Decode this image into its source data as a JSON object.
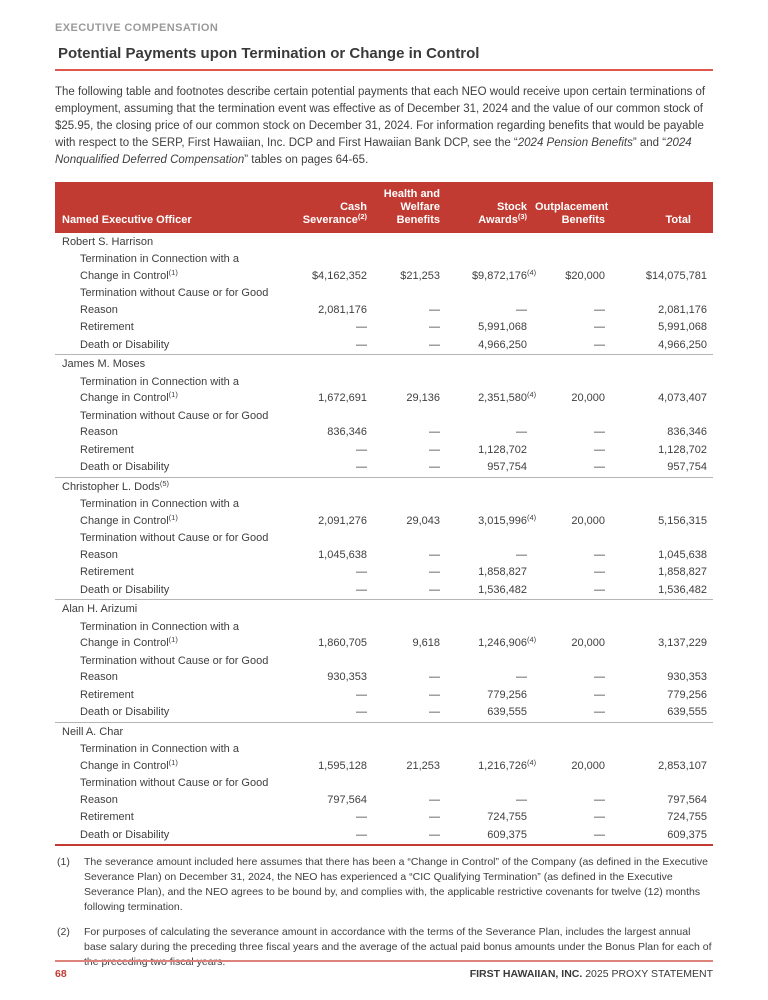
{
  "colors": {
    "header_bg": "#c23b32",
    "title_rule_red": "#e0564f",
    "footer_rule_red": "#dd837c",
    "page_number_red": "#c23b32"
  },
  "page": {
    "eyebrow": "EXECUTIVE COMPENSATION",
    "title": "Potential Payments upon Termination or Change in Control"
  },
  "intro": {
    "segments": [
      {
        "text": "The following table and footnotes describe certain potential payments that each NEO would receive upon certain terminations of employment, assuming that the termination event was effective as of December 31, 2024 and the value of our common stock of $25.95, the closing price of our common stock on December 31, 2024. For information regarding benefits that would be payable with respect to the SERP, First Hawaiian, Inc. DCP and First Hawaiian Bank DCP, see the “",
        "italic": false
      },
      {
        "text": "2024 Pension Benefits",
        "italic": true
      },
      {
        "text": "” and “",
        "italic": false
      },
      {
        "text": "2024 Nonqualified Deferred Compensation",
        "italic": true
      },
      {
        "text": "” tables on pages 64-65.",
        "italic": false
      }
    ]
  },
  "table": {
    "header": [
      {
        "lines": [
          "Named Executive Officer"
        ],
        "sup": ""
      },
      {
        "lines": [
          "Cash",
          "Severance"
        ],
        "sup": "(2)"
      },
      {
        "lines": [
          "Health and",
          "Welfare",
          "Benefits"
        ],
        "sup": ""
      },
      {
        "lines": [
          "Stock",
          "Awards"
        ],
        "sup": "(3)"
      },
      {
        "lines": [
          "Outplacement",
          "Benefits"
        ],
        "sup": ""
      },
      {
        "lines": [
          "Total"
        ],
        "sup": ""
      }
    ],
    "sections": [
      {
        "name": "Robert S. Harrison",
        "name_sup": "",
        "rows": [
          {
            "label_lines": [
              "Termination in Connection with a",
              "Change in Control"
            ],
            "label_sup": "(1)",
            "values": [
              "$4,162,352",
              "$21,253",
              "$9,872,176",
              "$20,000",
              "$14,075,781"
            ],
            "stock_sup": "(4)"
          },
          {
            "label_lines": [
              "Termination without Cause or for Good",
              "Reason"
            ],
            "label_sup": "",
            "values": [
              "2,081,176",
              "—",
              "—",
              "—",
              "2,081,176"
            ],
            "stock_sup": ""
          },
          {
            "label_lines": [
              "Retirement"
            ],
            "label_sup": "",
            "values": [
              "—",
              "—",
              "5,991,068",
              "—",
              "5,991,068"
            ],
            "stock_sup": ""
          },
          {
            "label_lines": [
              "Death or Disability"
            ],
            "label_sup": "",
            "values": [
              "—",
              "—",
              "4,966,250",
              "—",
              "4,966,250"
            ],
            "stock_sup": ""
          }
        ]
      },
      {
        "name": "James M. Moses",
        "name_sup": "",
        "rows": [
          {
            "label_lines": [
              "Termination in Connection with a",
              "Change in Control"
            ],
            "label_sup": "(1)",
            "values": [
              "1,672,691",
              "29,136",
              "2,351,580",
              "20,000",
              "4,073,407"
            ],
            "stock_sup": "(4)"
          },
          {
            "label_lines": [
              "Termination without Cause or for Good",
              "Reason"
            ],
            "label_sup": "",
            "values": [
              "836,346",
              "—",
              "—",
              "—",
              "836,346"
            ],
            "stock_sup": ""
          },
          {
            "label_lines": [
              "Retirement"
            ],
            "label_sup": "",
            "values": [
              "—",
              "—",
              "1,128,702",
              "—",
              "1,128,702"
            ],
            "stock_sup": ""
          },
          {
            "label_lines": [
              "Death or Disability"
            ],
            "label_sup": "",
            "values": [
              "—",
              "—",
              "957,754",
              "—",
              "957,754"
            ],
            "stock_sup": ""
          }
        ]
      },
      {
        "name": "Christopher L. Dods",
        "name_sup": "(5)",
        "rows": [
          {
            "label_lines": [
              "Termination in Connection with a",
              "Change in Control"
            ],
            "label_sup": "(1)",
            "values": [
              "2,091,276",
              "29,043",
              "3,015,996",
              "20,000",
              "5,156,315"
            ],
            "stock_sup": "(4)"
          },
          {
            "label_lines": [
              "Termination without Cause or for Good",
              "Reason"
            ],
            "label_sup": "",
            "values": [
              "1,045,638",
              "—",
              "—",
              "—",
              "1,045,638"
            ],
            "stock_sup": ""
          },
          {
            "label_lines": [
              "Retirement"
            ],
            "label_sup": "",
            "values": [
              "—",
              "—",
              "1,858,827",
              "—",
              "1,858,827"
            ],
            "stock_sup": ""
          },
          {
            "label_lines": [
              "Death or Disability"
            ],
            "label_sup": "",
            "values": [
              "—",
              "—",
              "1,536,482",
              "—",
              "1,536,482"
            ],
            "stock_sup": ""
          }
        ]
      },
      {
        "name": "Alan H. Arizumi",
        "name_sup": "",
        "rows": [
          {
            "label_lines": [
              "Termination in Connection with a",
              "Change in Control"
            ],
            "label_sup": "(1)",
            "values": [
              "1,860,705",
              "9,618",
              "1,246,906",
              "20,000",
              "3,137,229"
            ],
            "stock_sup": "(4)"
          },
          {
            "label_lines": [
              "Termination without Cause or for Good",
              "Reason"
            ],
            "label_sup": "",
            "values": [
              "930,353",
              "—",
              "—",
              "—",
              "930,353"
            ],
            "stock_sup": ""
          },
          {
            "label_lines": [
              "Retirement"
            ],
            "label_sup": "",
            "values": [
              "—",
              "—",
              "779,256",
              "—",
              "779,256"
            ],
            "stock_sup": ""
          },
          {
            "label_lines": [
              "Death or Disability"
            ],
            "label_sup": "",
            "values": [
              "—",
              "—",
              "639,555",
              "—",
              "639,555"
            ],
            "stock_sup": ""
          }
        ]
      },
      {
        "name": "Neill A. Char",
        "name_sup": "",
        "rows": [
          {
            "label_lines": [
              "Termination in Connection with a",
              "Change in Control"
            ],
            "label_sup": "(1)",
            "values": [
              "1,595,128",
              "21,253",
              "1,216,726",
              "20,000",
              "2,853,107"
            ],
            "stock_sup": "(4)"
          },
          {
            "label_lines": [
              "Termination without Cause or for Good",
              "Reason"
            ],
            "label_sup": "",
            "values": [
              "797,564",
              "—",
              "—",
              "—",
              "797,564"
            ],
            "stock_sup": ""
          },
          {
            "label_lines": [
              "Retirement"
            ],
            "label_sup": "",
            "values": [
              "—",
              "—",
              "724,755",
              "—",
              "724,755"
            ],
            "stock_sup": ""
          },
          {
            "label_lines": [
              "Death or Disability"
            ],
            "label_sup": "",
            "values": [
              "—",
              "—",
              "609,375",
              "—",
              "609,375"
            ],
            "stock_sup": ""
          }
        ]
      }
    ]
  },
  "footnotes": [
    {
      "marker": "(1)",
      "text": "The severance amount included here assumes that there has been a “Change in Control” of the Company (as defined in the Executive Severance Plan) on December 31, 2024, the NEO has experienced a “CIC Qualifying Termination” (as defined in the Executive Severance Plan), and the NEO agrees to be bound by, and complies with, the applicable restrictive covenants for twelve (12) months following termination."
    },
    {
      "marker": "(2)",
      "text": "For purposes of calculating the severance amount in accordance with the terms of the Severance Plan, includes the largest annual base salary during the preceding three fiscal years and the average of the actual paid bonus amounts under the Bonus Plan for each of the preceding two fiscal years."
    }
  ],
  "footer": {
    "page_number": "68",
    "brand": "FIRST HAWAIIAN, INC.",
    "suffix": " 2025 PROXY STATEMENT"
  }
}
